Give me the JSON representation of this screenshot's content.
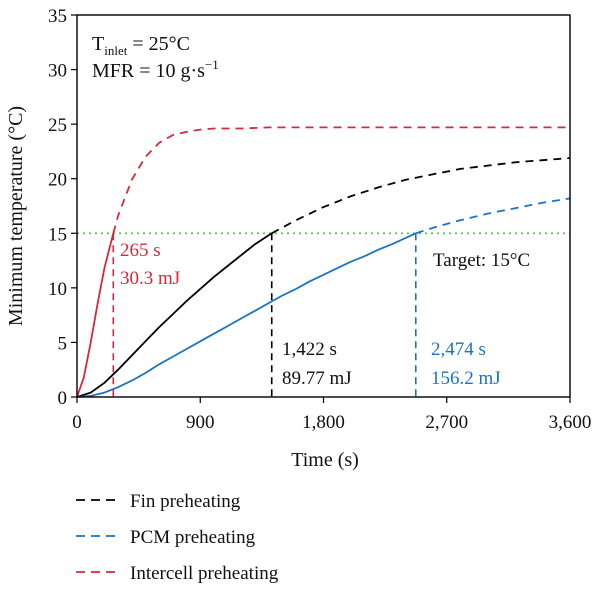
{
  "chart_data": {
    "type": "line",
    "title": "",
    "xlabel": "Time (s)",
    "ylabel": "Minimum temperature (°C)",
    "xlim": [
      0,
      3600
    ],
    "ylim": [
      0,
      35
    ],
    "x_ticks": [
      0,
      900,
      1800,
      2700,
      3600
    ],
    "x_tick_labels": [
      "0",
      "900",
      "1,800",
      "2,700",
      "3,600"
    ],
    "y_ticks": [
      0,
      5,
      10,
      15,
      20,
      25,
      30,
      35
    ],
    "y_tick_labels": [
      "0",
      "5",
      "10",
      "15",
      "20",
      "25",
      "30",
      "35"
    ],
    "conditions": {
      "t_main": "T",
      "t_sub": "inlet",
      "t_value": " = 25°C",
      "mfr_main": "MFR = 10 g·s",
      "mfr_sup": "−1"
    },
    "target": {
      "y": 15,
      "label": "Target: 15°C",
      "color": "#4cc24c"
    },
    "series": [
      {
        "name": "Fin preheating",
        "color": "#000000",
        "x": [
          0,
          100,
          200,
          300,
          400,
          500,
          600,
          700,
          800,
          900,
          1000,
          1100,
          1200,
          1300,
          1422,
          1600,
          1800,
          2000,
          2200,
          2400,
          2600,
          2800,
          3000,
          3200,
          3400,
          3600
        ],
        "y": [
          0,
          0.4,
          1.3,
          2.5,
          3.8,
          5.1,
          6.4,
          7.6,
          8.8,
          9.9,
          11.0,
          12.0,
          13.0,
          14.0,
          15.0,
          16.2,
          17.4,
          18.4,
          19.2,
          19.9,
          20.4,
          20.9,
          21.2,
          21.5,
          21.7,
          21.9
        ],
        "crossing": {
          "x": 1422,
          "y": 15,
          "time_label": "1,422 s",
          "energy_label": "89.77 mJ"
        }
      },
      {
        "name": "PCM preheating",
        "color": "#1a73c2",
        "x": [
          0,
          100,
          200,
          300,
          400,
          500,
          600,
          700,
          800,
          900,
          1000,
          1100,
          1200,
          1300,
          1400,
          1500,
          1600,
          1700,
          1800,
          1900,
          2000,
          2100,
          2200,
          2300,
          2474,
          2600,
          2800,
          3000,
          3200,
          3400,
          3600
        ],
        "y": [
          0,
          0.1,
          0.4,
          0.9,
          1.5,
          2.2,
          3.0,
          3.7,
          4.4,
          5.1,
          5.8,
          6.5,
          7.2,
          7.9,
          8.6,
          9.3,
          9.9,
          10.6,
          11.2,
          11.8,
          12.4,
          12.9,
          13.5,
          14.0,
          15.0,
          15.5,
          16.2,
          16.8,
          17.3,
          17.8,
          18.2
        ],
        "crossing": {
          "x": 2474,
          "y": 15,
          "time_label": "2,474 s",
          "energy_label": "156.2 mJ"
        }
      },
      {
        "name": "Intercell preheating",
        "color": "#d42a3a",
        "x": [
          0,
          50,
          100,
          150,
          200,
          265,
          300,
          400,
          500,
          600,
          700,
          800,
          900,
          1000,
          1200,
          1400,
          1600,
          2000,
          2400,
          2800,
          3200,
          3600
        ],
        "y": [
          0,
          1.8,
          5.0,
          8.5,
          11.8,
          15.0,
          16.6,
          19.9,
          22.0,
          23.3,
          24.0,
          24.3,
          24.5,
          24.6,
          24.6,
          24.7,
          24.7,
          24.7,
          24.7,
          24.7,
          24.7,
          24.7
        ],
        "crossing": {
          "x": 265,
          "y": 15,
          "time_label": "265 s",
          "energy_label": "30.3 mJ"
        }
      }
    ],
    "legend": {
      "position": "bottom"
    }
  }
}
